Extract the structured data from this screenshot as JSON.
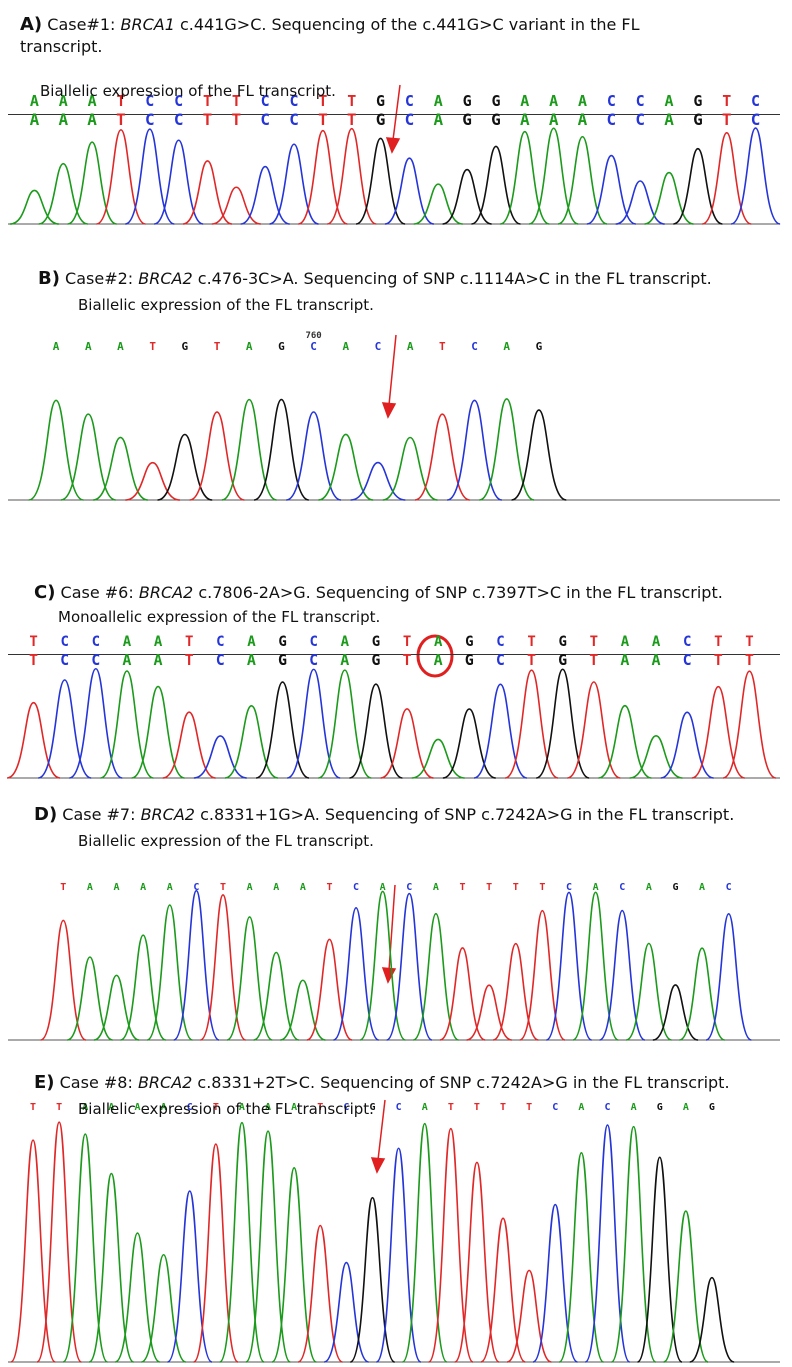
{
  "panels": [
    {
      "label": "A)",
      "case": "Case#1:",
      "gene": "BRCA1",
      "text": "c.441G>C. Sequencing of the c.441G>C variant in the FL transcript.",
      "subtitle": "Biallelic expression of the FL transcript.",
      "bases": [
        "A",
        "A",
        "A",
        "T",
        "C",
        "C",
        "T",
        "T",
        "C",
        "C",
        "T",
        "T",
        "G",
        "C",
        "A",
        "G",
        "G",
        "A",
        "A",
        "A",
        "C",
        "C",
        "A",
        "G",
        "T",
        "C"
      ]
    },
    {
      "label": "B)",
      "case": "Case#2:",
      "gene": "BRCA2",
      "text": "c.476-3C>A. Sequencing of SNP c.1114A>C in the FL transcript.",
      "subtitle": "Biallelic expression of the FL transcript.",
      "marker": "760",
      "bases": [
        "A",
        "A",
        "A",
        "T",
        "G",
        "T",
        "A",
        "G",
        "C",
        "A",
        "C",
        "A",
        "T",
        "C",
        "A",
        "G"
      ]
    },
    {
      "label": "C)",
      "case": "Case #6:",
      "gene": "BRCA2",
      "text": "c.7806-2A>G. Sequencing of SNP c.7397T>C in the FL transcript.",
      "subtitle": "Monoallelic expression of the FL transcript.",
      "bases": [
        "T",
        "C",
        "C",
        "A",
        "A",
        "T",
        "C",
        "A",
        "G",
        "C",
        "A",
        "G",
        "T",
        "A",
        "G",
        "C",
        "T",
        "G",
        "T",
        "A",
        "A",
        "C",
        "T",
        "T"
      ]
    },
    {
      "label": "D)",
      "case": "Case #7:",
      "gene": "BRCA2",
      "text": "c.8331+1G>A. Sequencing of SNP c.7242A>G in the FL transcript.",
      "subtitle": "Biallelic expression of the FL transcript.",
      "bases": [
        "T",
        "A",
        "A",
        "A",
        "A",
        "C",
        "T",
        "A",
        "A",
        "A",
        "T",
        "C",
        "A",
        "C",
        "A",
        "T",
        "T",
        "T",
        "T",
        "C",
        "A",
        "C",
        "A",
        "G",
        "A",
        "C"
      ]
    },
    {
      "label": "E)",
      "case": "Case #8:",
      "gene": "BRCA2",
      "text": "c.8331+2T>C. Sequencing of SNP c.7242A>G in the FL transcript.",
      "subtitle": "Biallelic expression of the FL transcript.",
      "bases": [
        "T",
        "T",
        "A",
        "A",
        "A",
        "A",
        "C",
        "T",
        "A",
        "A",
        "A",
        "T",
        "C",
        "G",
        "C",
        "A",
        "T",
        "T",
        "T",
        "T",
        "C",
        "A",
        "C",
        "A",
        "G",
        "A",
        "G"
      ]
    }
  ]
}
